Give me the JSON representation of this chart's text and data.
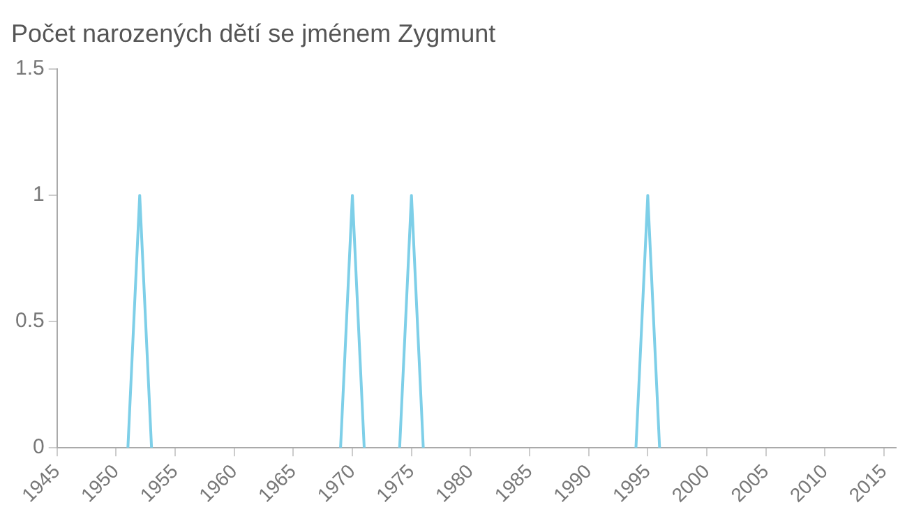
{
  "chart_data": {
    "type": "line",
    "title": "Počet narozených dětí se jménem Zygmunt",
    "x": [
      1951,
      1952,
      1953,
      1960,
      1969,
      1970,
      1971,
      1973,
      1974,
      1975,
      1976,
      1985,
      1994,
      1995,
      1996
    ],
    "series": [
      {
        "color": "#7ecfe8",
        "values": [
          0,
          1,
          0,
          null,
          0,
          1,
          0,
          null,
          0,
          1,
          0,
          null,
          0,
          1,
          0
        ]
      }
    ],
    "xlim": [
      1945,
      2016
    ],
    "xticks": [
      1945,
      1950,
      1955,
      1960,
      1965,
      1970,
      1975,
      1980,
      1985,
      1990,
      1995,
      2000,
      2005,
      2010,
      2015
    ],
    "ylim": [
      0,
      1.5
    ],
    "yticks": [
      0,
      0.5,
      1,
      1.5
    ],
    "grid": false,
    "legend": false,
    "marker": "none",
    "line_style": "solid"
  }
}
